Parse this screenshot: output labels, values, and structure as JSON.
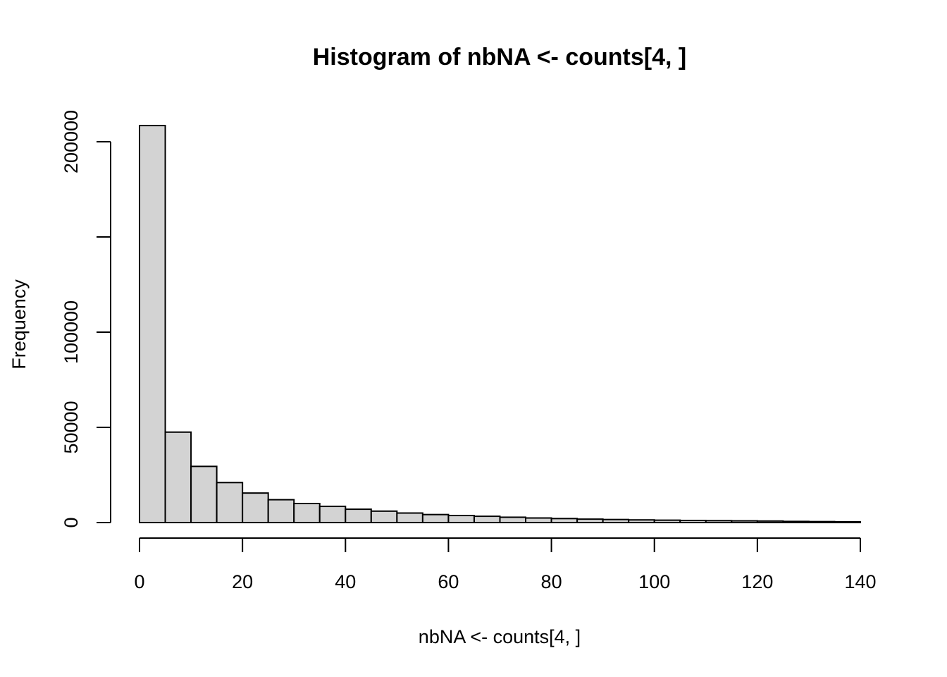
{
  "chart_data": {
    "type": "bar",
    "title": "Histogram of nbNA <- counts[4, ]",
    "xlabel": "nbNA <- counts[4, ]",
    "ylabel": "Frequency",
    "bin_width": 5,
    "bin_starts": [
      0,
      5,
      10,
      15,
      20,
      25,
      30,
      35,
      40,
      45,
      50,
      55,
      60,
      65,
      70,
      75,
      80,
      85,
      90,
      95,
      100,
      105,
      110,
      115,
      120,
      125,
      130,
      135
    ],
    "values": [
      208500,
      47500,
      29500,
      21000,
      15500,
      12000,
      10000,
      8500,
      7000,
      6000,
      5000,
      4200,
      3700,
      3300,
      2800,
      2400,
      2100,
      1800,
      1600,
      1400,
      1250,
      1100,
      1000,
      900,
      800,
      600,
      500,
      400
    ],
    "xlim": [
      0,
      140
    ],
    "ylim": [
      0,
      210000
    ],
    "x_ticks": [
      0,
      20,
      40,
      60,
      80,
      100,
      120,
      140
    ],
    "x_tick_labels": [
      "0",
      "20",
      "40",
      "60",
      "80",
      "100",
      "120",
      "140"
    ],
    "y_ticks": [
      0,
      50000,
      100000,
      150000,
      200000
    ],
    "y_tick_labels": [
      "0",
      "50000",
      "100000",
      "",
      "200000"
    ],
    "grid": false,
    "bar_color": "#d3d3d3",
    "edge_color": "#000000"
  }
}
